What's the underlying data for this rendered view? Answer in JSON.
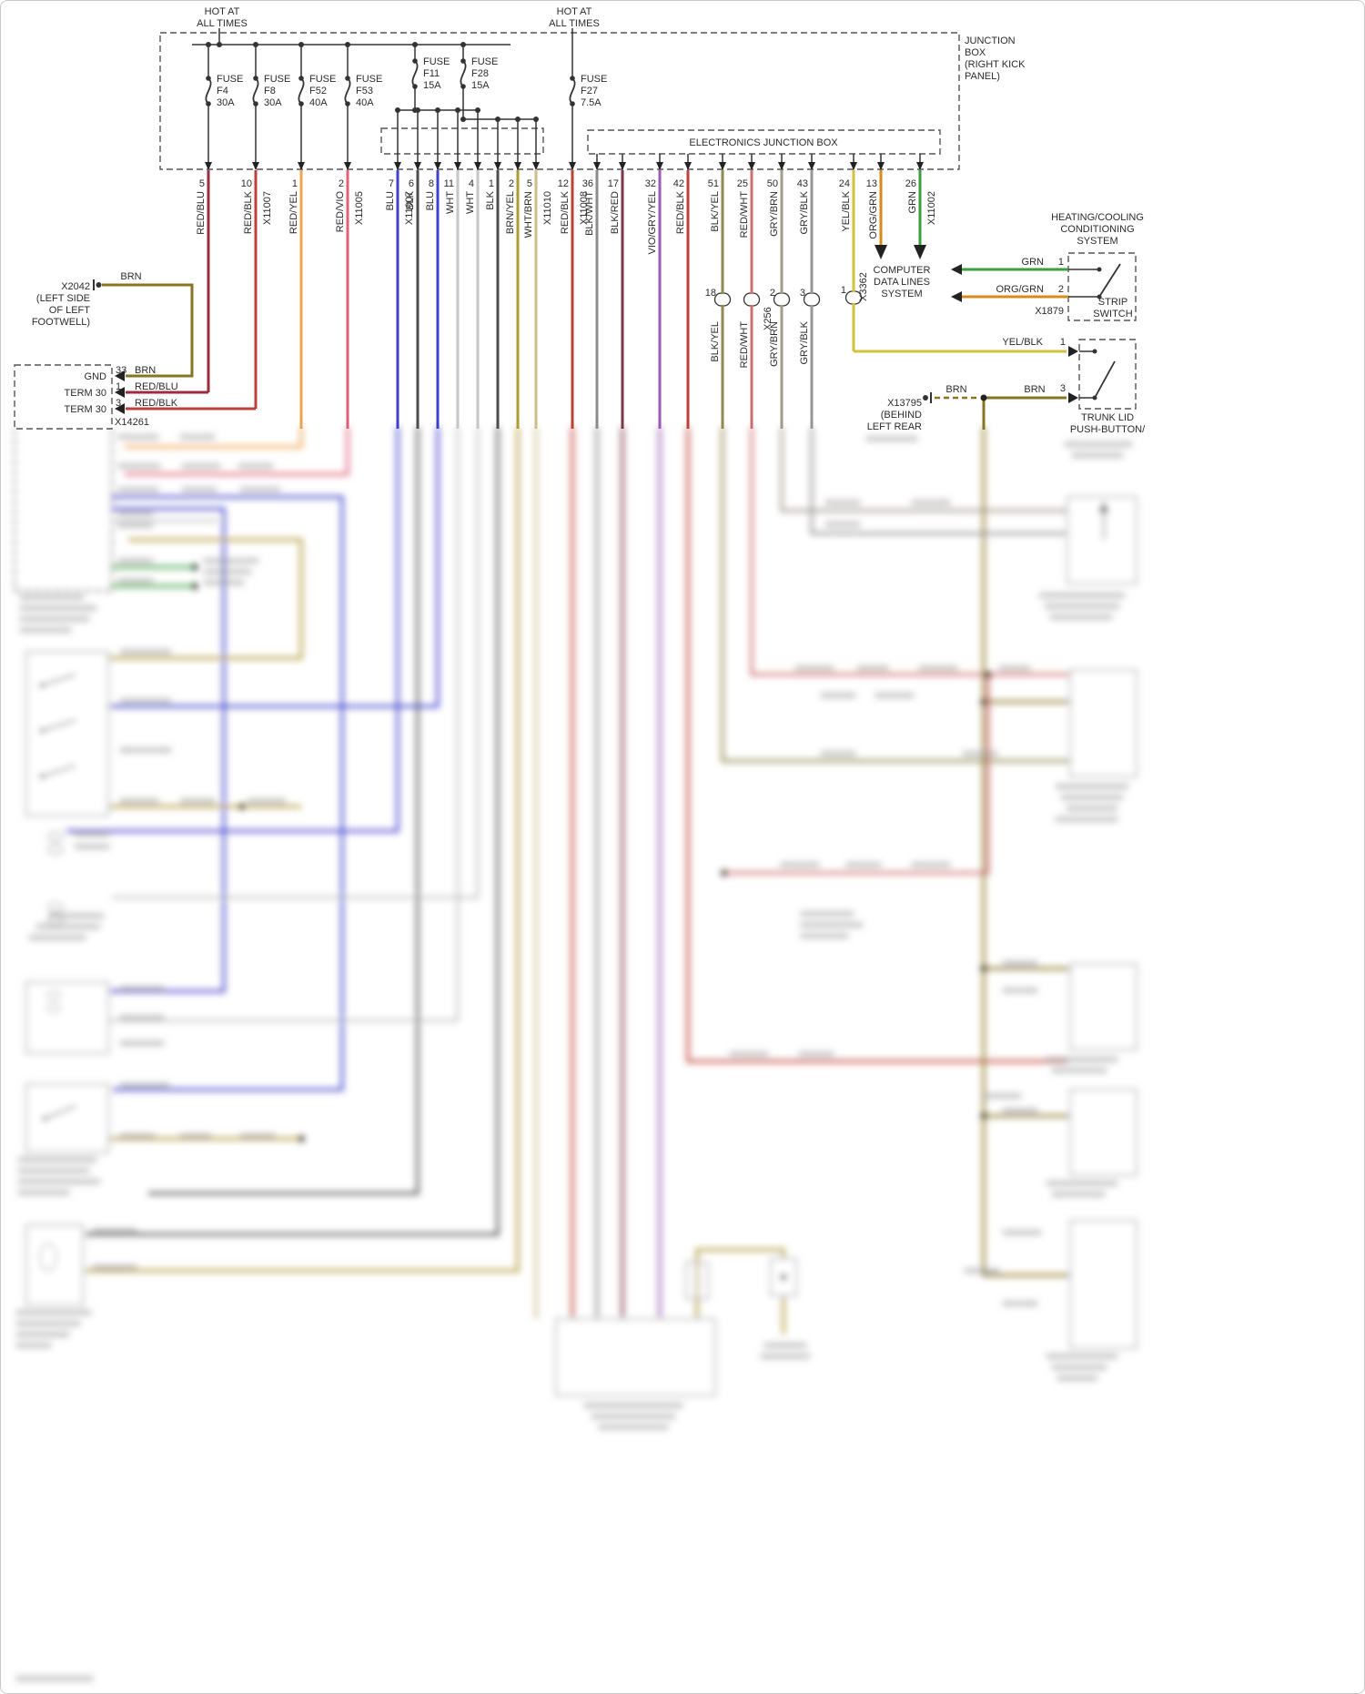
{
  "palette": {
    "RED/BLU": "#9e2b3f",
    "RED/BLK": "#bf4038",
    "RED/YEL": "#efa34f",
    "RED/VIO": "#e0607a",
    "BLU": "#4040cc",
    "BLK": "#4d4d4d",
    "WHT": "#c6c6c6",
    "BRN/YEL": "#b09a35",
    "WHT/BRN": "#cdbd8a",
    "BLK/WHT": "#8c8c8c",
    "BLK/RED": "#7c3a44",
    "VIO/GRY/YEL": "#9a5bb5",
    "BLK/YEL": "#8f8a50",
    "RED/WHT": "#cf6f6f",
    "GRY/BRN": "#a39a88",
    "GRY/BLK": "#979797",
    "YEL/BLK": "#d3c23e",
    "ORG/GRN": "#d78a1e",
    "GRN": "#3a9e3f",
    "BRN": "#8a7424"
  },
  "header": {
    "hot1": {
      "l1": "HOT AT",
      "l2": "ALL TIMES"
    },
    "hot2": {
      "l1": "HOT AT",
      "l2": "ALL TIMES"
    },
    "junction_box": {
      "l1": "JUNCTION",
      "l2": "BOX",
      "l3": "(RIGHT KICK",
      "l4": "PANEL)"
    },
    "electronics_box": "ELECTRONICS JUNCTION BOX",
    "fuses": [
      {
        "prefix": "FUSE",
        "name": "F4",
        "amps": "30A"
      },
      {
        "prefix": "FUSE",
        "name": "F8",
        "amps": "30A"
      },
      {
        "prefix": "FUSE",
        "name": "F52",
        "amps": "40A"
      },
      {
        "prefix": "FUSE",
        "name": "F53",
        "amps": "40A"
      },
      {
        "prefix": "FUSE",
        "name": "F11",
        "amps": "15A"
      },
      {
        "prefix": "FUSE",
        "name": "F28",
        "amps": "15A"
      },
      {
        "prefix": "FUSE",
        "name": "F27",
        "amps": "7.5A"
      }
    ]
  },
  "wires": [
    {
      "pin": "5",
      "color": "RED/BLU"
    },
    {
      "pin": "10",
      "color": "RED/BLK",
      "connector": "X11007"
    },
    {
      "pin": "1",
      "color": "RED/YEL"
    },
    {
      "pin": "2",
      "color": "RED/VIO",
      "connector": "X11005"
    },
    {
      "pin": "7",
      "color": "BLU",
      "connector": "X11007"
    },
    {
      "pin": "6",
      "color": "BLK"
    },
    {
      "pin": "8",
      "color": "BLU"
    },
    {
      "pin": "11",
      "color": "WHT"
    },
    {
      "pin": "4",
      "color": "WHT"
    },
    {
      "pin": "1",
      "color": "BLK"
    },
    {
      "pin": "2",
      "color": "BRN/YEL"
    },
    {
      "pin": "5",
      "color": "WHT/BRN",
      "connector": "X11010"
    },
    {
      "pin": "12",
      "color": "RED/BLK",
      "connector": "X11008"
    },
    {
      "pin": "36",
      "color": "BLK/WHT"
    },
    {
      "pin": "17",
      "color": "BLK/RED"
    },
    {
      "pin": "32",
      "color": "VIO/GRY/YEL"
    },
    {
      "pin": "42",
      "color": "RED/BLK"
    },
    {
      "pin": "51",
      "color": "BLK/YEL"
    },
    {
      "pin": "25",
      "color": "RED/WHT"
    },
    {
      "pin": "50",
      "color": "GRY/BRN"
    },
    {
      "pin": "43",
      "color": "GRY/BLK"
    },
    {
      "pin": "24",
      "color": "YEL/BLK"
    },
    {
      "pin": "13",
      "color": "ORG/GRN"
    },
    {
      "pin": "26",
      "color": "GRN",
      "connector": "X11002"
    }
  ],
  "connectors": {
    "x256": {
      "label": "X256",
      "pins": [
        {
          "pin": "18",
          "wire": "BLK/YEL"
        },
        {
          "pin": "",
          "wire": "RED/WHT"
        },
        {
          "pin": "2",
          "wire": "GRY/BRN"
        },
        {
          "pin": "3",
          "wire": "GRY/BLK"
        }
      ]
    },
    "x3362": {
      "label": "X3362",
      "pin": "1"
    }
  },
  "left": {
    "x2042": {
      "name": "X2042",
      "location": [
        "(LEFT SIDE",
        "OF LEFT",
        "FOOTWELL)"
      ],
      "wire": "BRN"
    },
    "ground_block": {
      "rows": [
        {
          "label": "GND",
          "pin": "33",
          "wire": "BRN"
        },
        {
          "label": "TERM 30",
          "pin": "1",
          "wire": "RED/BLU"
        },
        {
          "label": "TERM 30",
          "pin": "3",
          "wire": "RED/BLK"
        }
      ],
      "connector": "X14261"
    }
  },
  "right": {
    "heating_system": {
      "l1": "HEATING/COOLING",
      "l2": "CONDITIONING",
      "l3": "SYSTEM"
    },
    "strip_switch": {
      "l1": "STRIP",
      "l2": "SWITCH",
      "pin1": "1",
      "wire1": "GRN",
      "pin2": "2",
      "wire2": "ORG/GRN",
      "connector": "X1879"
    },
    "computer_system": {
      "l1": "COMPUTER",
      "l2": "DATA LINES",
      "l3": "SYSTEM"
    },
    "trunk_switch": {
      "l1": "TRUNK LID",
      "l2": "PUSH-BUTTON/",
      "pin_top": "1",
      "wire_top": "YEL/BLK",
      "pin_bottom": "3",
      "wire_bottom": "BRN",
      "wire_bottom2": "BRN"
    },
    "x13795": {
      "name": "X13795",
      "location": [
        "(BEHIND",
        "LEFT REAR"
      ]
    }
  }
}
